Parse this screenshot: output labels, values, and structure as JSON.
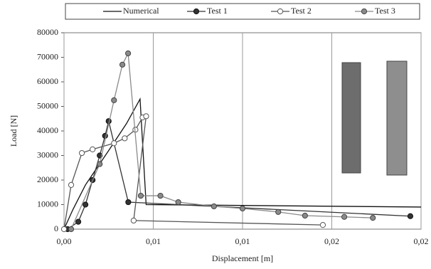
{
  "chart_data": {
    "type": "line",
    "x_label": "Displacement [m]",
    "y_label": "Load [N]",
    "xlim": [
      0,
      0.02
    ],
    "ylim": [
      0,
      80000
    ],
    "xticks": [
      {
        "value": 0,
        "label": "0,00"
      },
      {
        "value": 0.005,
        "label": "0,01"
      },
      {
        "value": 0.01,
        "label": "0,01"
      },
      {
        "value": 0.015,
        "label": "0,02"
      },
      {
        "value": 0.02,
        "label": "0,02"
      }
    ],
    "yticks": [
      0,
      10000,
      20000,
      30000,
      40000,
      50000,
      60000,
      70000,
      80000
    ],
    "grid": "x",
    "legend": "top",
    "series": [
      {
        "name": "Numerical",
        "color": "#111111",
        "marker": "none",
        "x": [
          0,
          0.0005,
          0.0012,
          0.0025,
          0.0035,
          0.00426,
          0.0046,
          0.02
        ],
        "values": [
          0,
          8000,
          18000,
          32000,
          43000,
          53000,
          10000,
          9000
        ]
      },
      {
        "name": "Test 1",
        "color": "#333333",
        "marker": "filled",
        "x": [
          0.0002,
          0.0008,
          0.0012,
          0.0016,
          0.002,
          0.0023,
          0.0025,
          0.0036,
          0.0194
        ],
        "values": [
          0,
          3000,
          10000,
          20000,
          30000,
          38000,
          44000,
          11000,
          5300
        ]
      },
      {
        "name": "Test 2",
        "color": "#555555",
        "marker": "open",
        "x": [
          0,
          0.0004,
          0.001,
          0.0016,
          0.0028,
          0.0034,
          0.004,
          0.0044,
          0.0046,
          0.0039,
          0.0145
        ],
        "values": [
          0,
          18000,
          31000,
          32500,
          35000,
          37000,
          40500,
          45500,
          46000,
          3500,
          1700
        ]
      },
      {
        "name": "Test 3",
        "color": "#8a8a8a",
        "marker": "grey",
        "x": [
          0.0004,
          0.002,
          0.0028,
          0.00327,
          0.00359,
          0.0043,
          0.0054,
          0.0064,
          0.0084,
          0.01,
          0.012,
          0.0135,
          0.0157,
          0.0173
        ],
        "values": [
          0,
          26500,
          52500,
          67000,
          71600,
          13600,
          13600,
          11000,
          9300,
          8400,
          7000,
          5500,
          5000,
          4600
        ]
      }
    ]
  }
}
